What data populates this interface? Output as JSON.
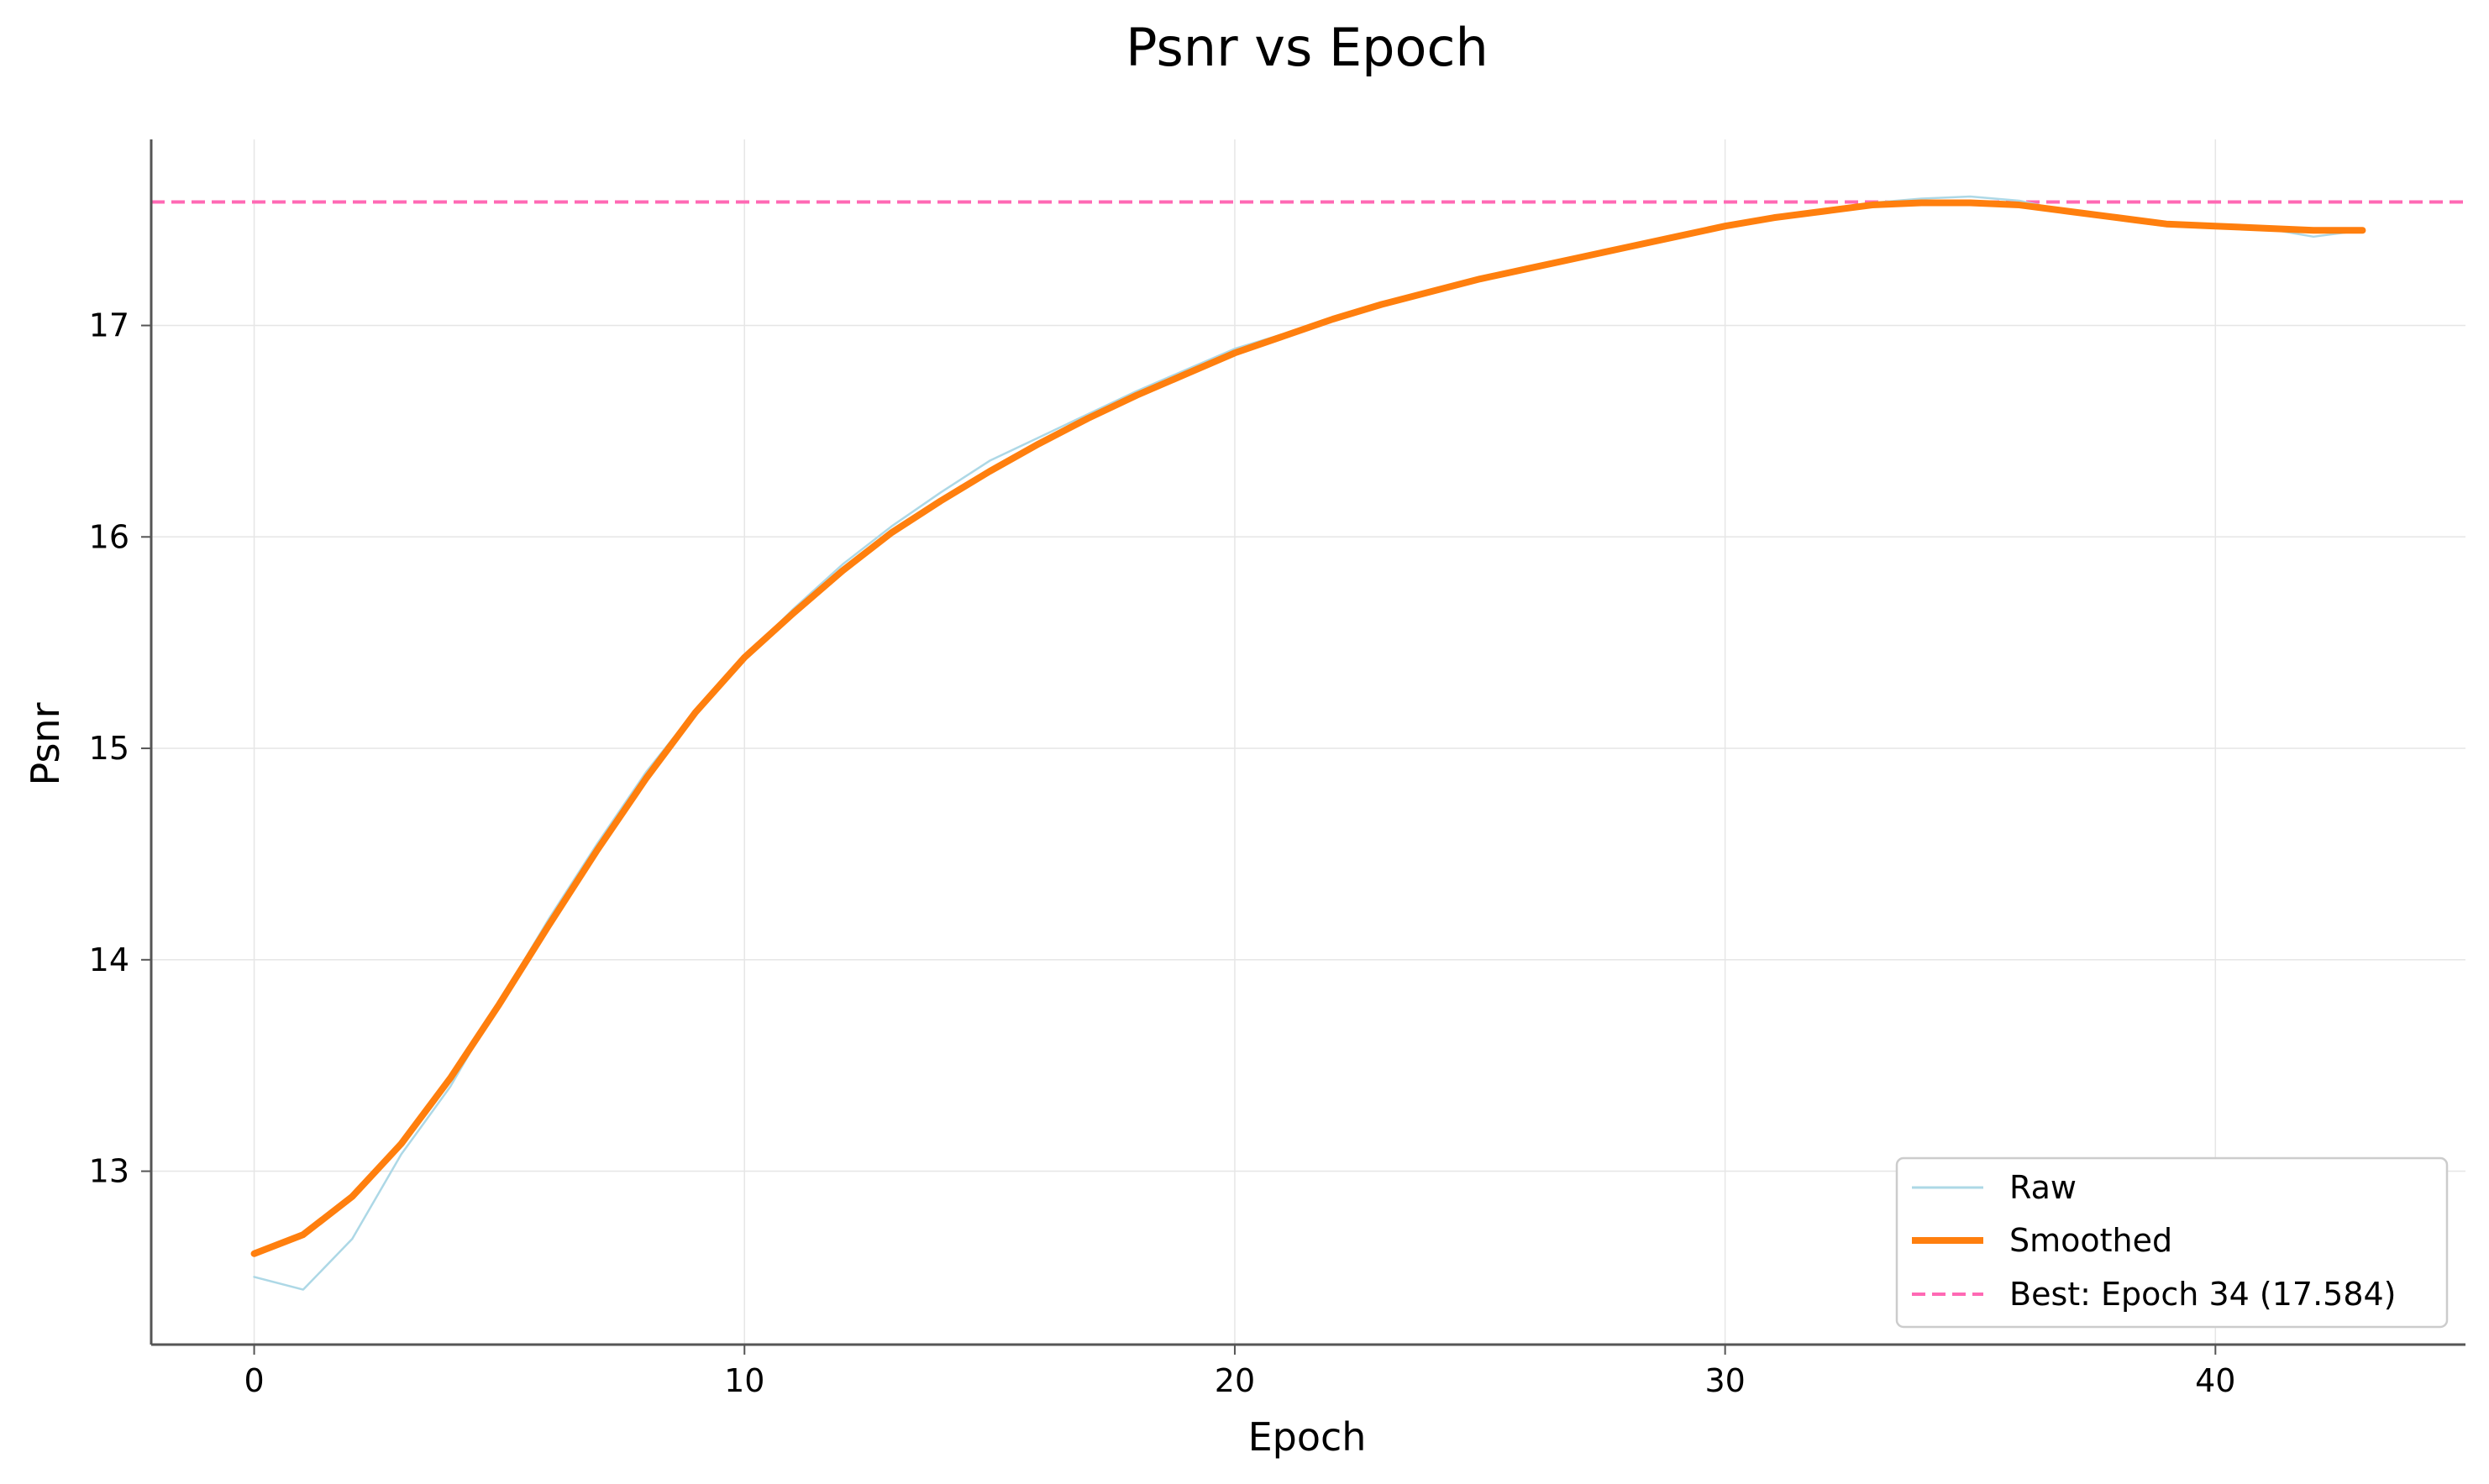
{
  "chart_data": {
    "type": "line",
    "title": "Psnr vs Epoch",
    "xlabel": "Epoch",
    "ylabel": "Psnr",
    "xlim": [
      -2.1,
      45.1
    ],
    "ylim": [
      12.18,
      17.88
    ],
    "x_ticks": [
      0,
      10,
      20,
      30,
      40
    ],
    "y_ticks": [
      13,
      14,
      15,
      16,
      17
    ],
    "grid": true,
    "legend_position": "lower right",
    "x": [
      0,
      1,
      2,
      3,
      4,
      5,
      6,
      7,
      8,
      9,
      10,
      11,
      12,
      13,
      14,
      15,
      16,
      17,
      18,
      19,
      20,
      21,
      22,
      23,
      24,
      25,
      26,
      27,
      28,
      29,
      30,
      31,
      32,
      33,
      34,
      35,
      36,
      37,
      38,
      39,
      40,
      41,
      42,
      43
    ],
    "series": [
      {
        "name": "Raw",
        "color": "#add8e6",
        "values": [
          12.5,
          12.44,
          12.68,
          13.08,
          13.4,
          13.8,
          14.19,
          14.55,
          14.89,
          15.18,
          15.43,
          15.66,
          15.87,
          16.05,
          16.21,
          16.36,
          16.47,
          16.58,
          16.69,
          16.79,
          16.89,
          16.96,
          17.03,
          17.1,
          17.16,
          17.22,
          17.27,
          17.32,
          17.38,
          17.42,
          17.47,
          17.51,
          17.55,
          17.58,
          17.6,
          17.61,
          17.59,
          17.54,
          17.5,
          17.47,
          17.46,
          17.46,
          17.42,
          17.45
        ]
      },
      {
        "name": "Smoothed",
        "color": "#ff7f0e",
        "values": [
          12.61,
          12.7,
          12.88,
          13.13,
          13.44,
          13.79,
          14.16,
          14.52,
          14.86,
          15.17,
          15.43,
          15.64,
          15.84,
          16.02,
          16.17,
          16.31,
          16.44,
          16.56,
          16.67,
          16.77,
          16.87,
          16.95,
          17.03,
          17.1,
          17.16,
          17.22,
          17.27,
          17.32,
          17.37,
          17.42,
          17.47,
          17.51,
          17.54,
          17.57,
          17.58,
          17.58,
          17.57,
          17.54,
          17.51,
          17.48,
          17.47,
          17.46,
          17.45,
          17.45
        ]
      }
    ],
    "reference_line": {
      "label": "Best: Epoch 34 (17.584)",
      "y": 17.584,
      "color": "#ff69b4",
      "style": "dashed"
    }
  }
}
